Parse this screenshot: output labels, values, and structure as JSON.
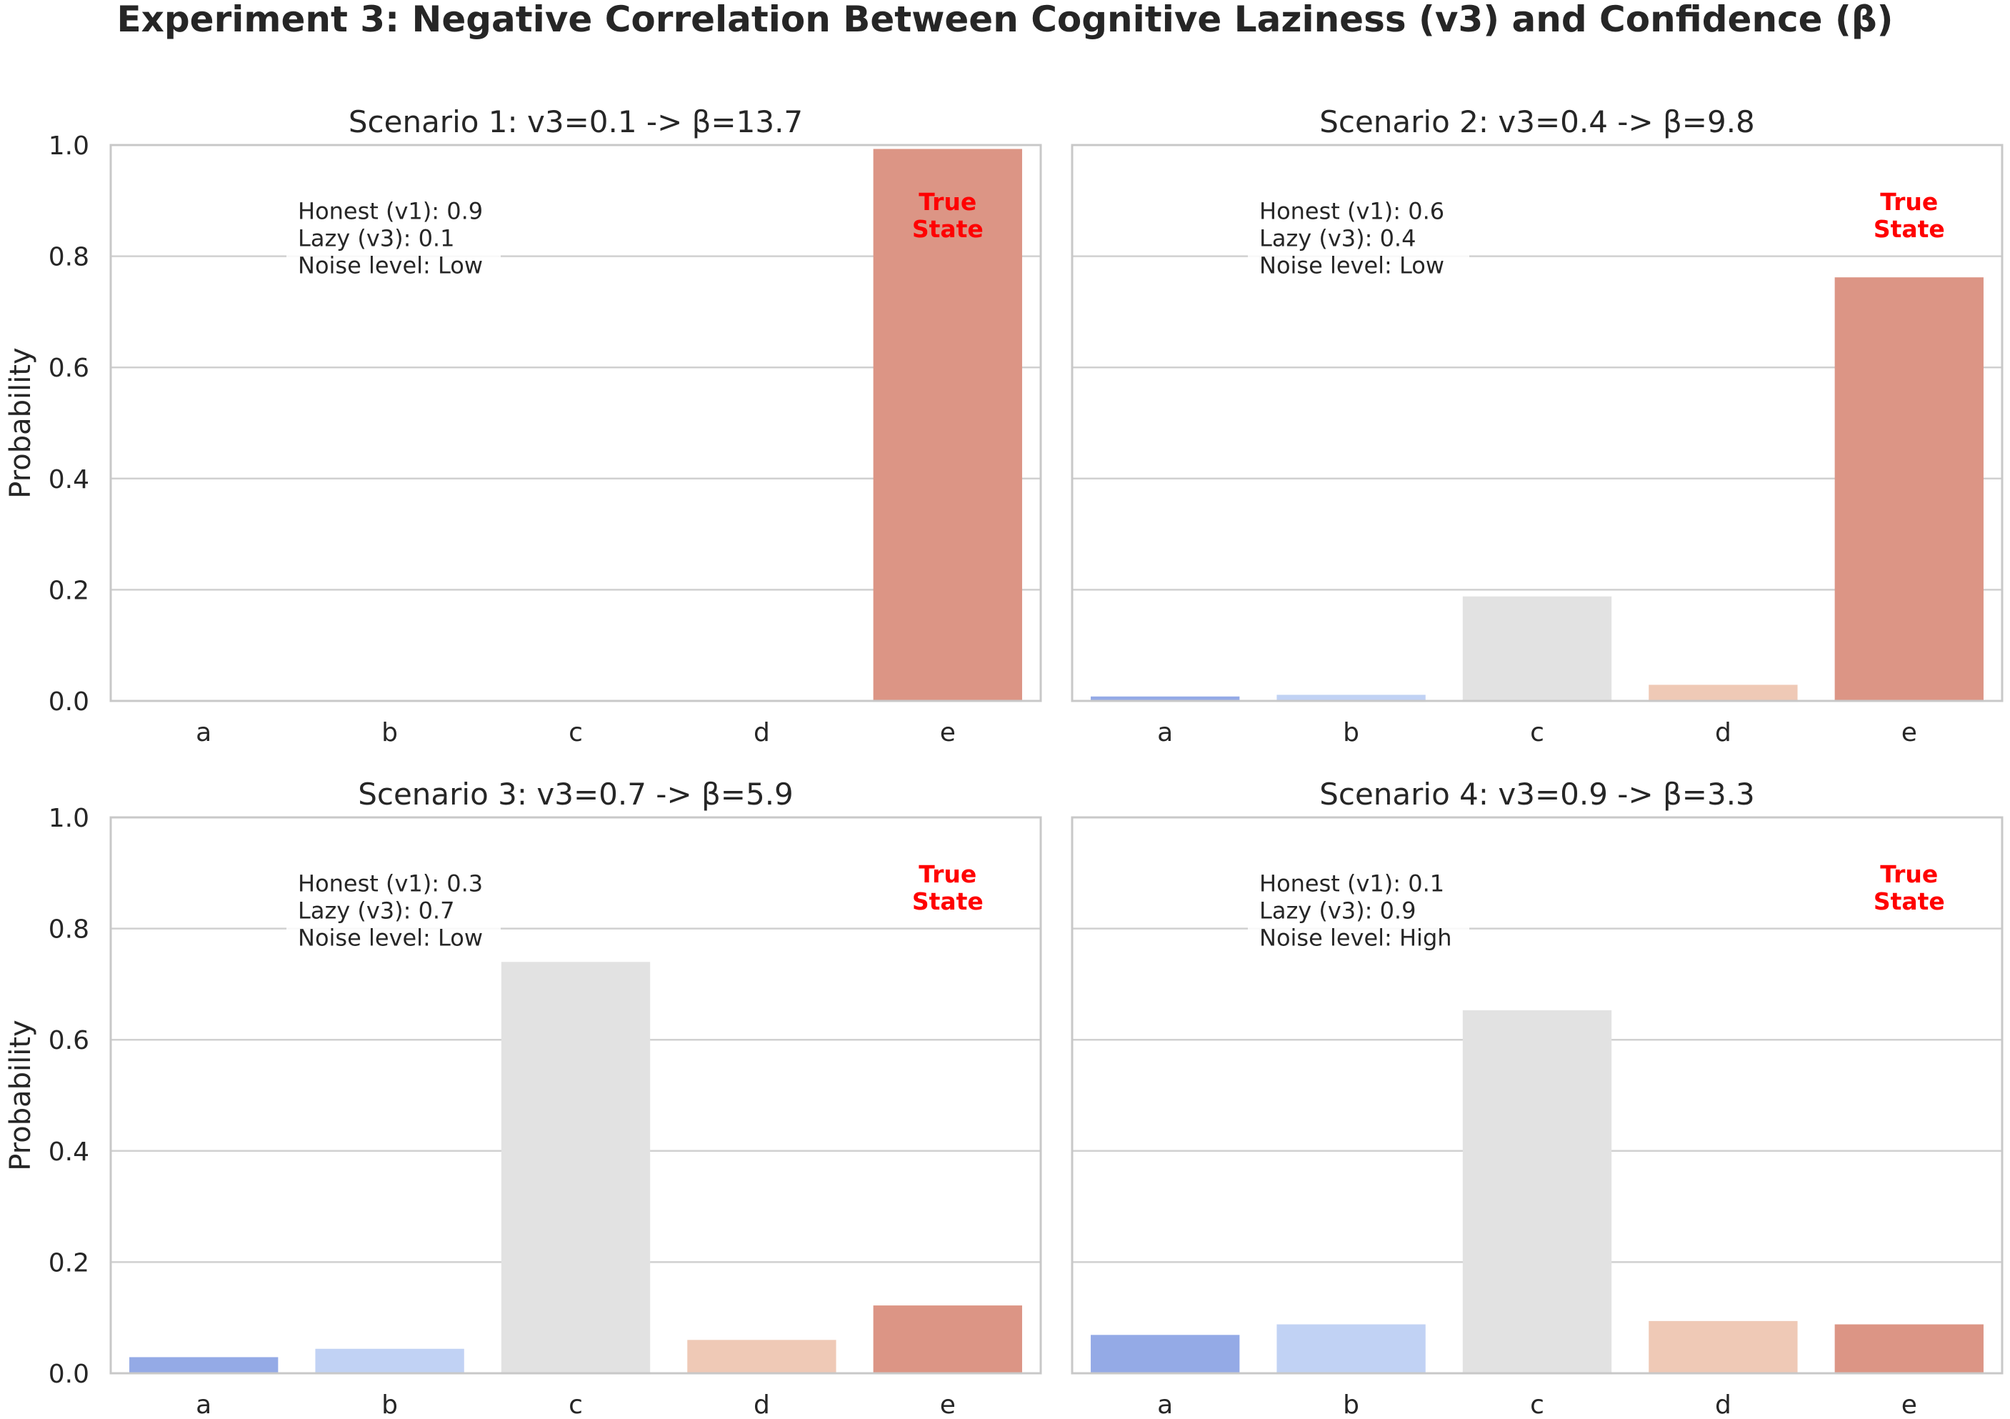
{
  "suptitle": "Experiment 3: Negative Correlation Between Cognitive Laziness (v3) and Confidence (β)",
  "colors": {
    "a": "#94aae6",
    "b": "#c1d2f4",
    "c": "#e2e2e2",
    "d": "#efc9b6",
    "e": "#dc9585",
    "grid": "#d0d0d0",
    "spine": "#c8c8c8",
    "true_state": "#ff0000",
    "text": "#262626"
  },
  "chart_data": [
    {
      "type": "bar",
      "title": "Scenario 1: v3=0.1  ->  β=13.7",
      "categories": [
        "a",
        "b",
        "c",
        "d",
        "e"
      ],
      "values": [
        0.0,
        0.0,
        0.0,
        0.0,
        0.993
      ],
      "ylabel": "Probability",
      "ylim": [
        0,
        1
      ],
      "yticks": [
        "0.0",
        "0.2",
        "0.4",
        "0.6",
        "0.8",
        "1.0"
      ],
      "grid": true,
      "annotation": [
        "Honest (v1): 0.9",
        "Lazy (v3): 0.1",
        "Noise level: Low"
      ],
      "true_state_label": [
        "True",
        "State"
      ]
    },
    {
      "type": "bar",
      "title": "Scenario 2: v3=0.4  ->  β=9.8",
      "categories": [
        "a",
        "b",
        "c",
        "d",
        "e"
      ],
      "values": [
        0.008,
        0.011,
        0.188,
        0.029,
        0.762
      ],
      "ylabel": "",
      "ylim": [
        0,
        1
      ],
      "yticks": [],
      "grid": true,
      "annotation": [
        "Honest (v1): 0.6",
        "Lazy (v3): 0.4",
        "Noise level: Low"
      ],
      "true_state_label": [
        "True",
        "State"
      ]
    },
    {
      "type": "bar",
      "title": "Scenario 3: v3=0.7  ->  β=5.9",
      "categories": [
        "a",
        "b",
        "c",
        "d",
        "e"
      ],
      "values": [
        0.029,
        0.044,
        0.74,
        0.06,
        0.122
      ],
      "ylabel": "Probability",
      "ylim": [
        0,
        1
      ],
      "yticks": [
        "0.0",
        "0.2",
        "0.4",
        "0.6",
        "0.8",
        "1.0"
      ],
      "grid": true,
      "annotation": [
        "Honest (v1): 0.3",
        "Lazy (v3): 0.7",
        "Noise level: Low"
      ],
      "true_state_label": [
        "True",
        "State"
      ]
    },
    {
      "type": "bar",
      "title": "Scenario 4: v3=0.9  ->  β=3.3",
      "categories": [
        "a",
        "b",
        "c",
        "d",
        "e"
      ],
      "values": [
        0.069,
        0.088,
        0.653,
        0.094,
        0.088
      ],
      "ylabel": "",
      "ylim": [
        0,
        1
      ],
      "yticks": [],
      "grid": true,
      "annotation": [
        "Honest (v1): 0.1",
        "Lazy (v3): 0.9",
        "Noise level: High"
      ],
      "true_state_label": [
        "True",
        "State"
      ]
    }
  ]
}
